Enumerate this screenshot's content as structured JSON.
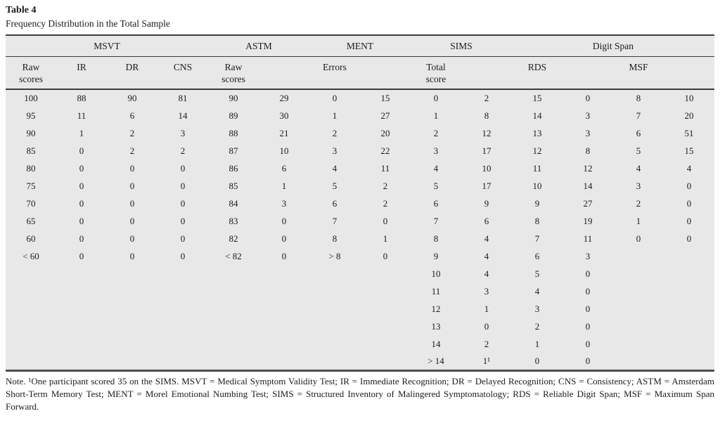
{
  "page": {
    "title": "Table 4",
    "subtitle": "Frequency Distribution in the Total Sample"
  },
  "table": {
    "column_groups": [
      {
        "label": "MSVT",
        "span": 4
      },
      {
        "label": "ASTM",
        "span": 2
      },
      {
        "label": "MENT",
        "span": 2
      },
      {
        "label": "SIMS",
        "span": 2
      },
      {
        "label": "Digit Span",
        "span": 4
      }
    ],
    "sub_headers": [
      "Raw\nscores",
      "IR",
      "DR",
      "CNS",
      "Raw\nscores",
      "",
      "Errors",
      "",
      "Total\nscore",
      "",
      "RDS",
      "",
      "MSF",
      ""
    ],
    "rows": [
      [
        "100",
        "88",
        "90",
        "81",
        "90",
        "29",
        "0",
        "15",
        "0",
        "2",
        "15",
        "0",
        "8",
        "10"
      ],
      [
        "95",
        "11",
        "6",
        "14",
        "89",
        "30",
        "1",
        "27",
        "1",
        "8",
        "14",
        "3",
        "7",
        "20"
      ],
      [
        "90",
        "1",
        "2",
        "3",
        "88",
        "21",
        "2",
        "20",
        "2",
        "12",
        "13",
        "3",
        "6",
        "51"
      ],
      [
        "85",
        "0",
        "2",
        "2",
        "87",
        "10",
        "3",
        "22",
        "3",
        "17",
        "12",
        "8",
        "5",
        "15"
      ],
      [
        "80",
        "0",
        "0",
        "0",
        "86",
        "6",
        "4",
        "11",
        "4",
        "10",
        "11",
        "12",
        "4",
        "4"
      ],
      [
        "75",
        "0",
        "0",
        "0",
        "85",
        "1",
        "5",
        "2",
        "5",
        "17",
        "10",
        "14",
        "3",
        "0"
      ],
      [
        "70",
        "0",
        "0",
        "0",
        "84",
        "3",
        "6",
        "2",
        "6",
        "9",
        "9",
        "27",
        "2",
        "0"
      ],
      [
        "65",
        "0",
        "0",
        "0",
        "83",
        "0",
        "7",
        "0",
        "7",
        "6",
        "8",
        "19",
        "1",
        "0"
      ],
      [
        "60",
        "0",
        "0",
        "0",
        "82",
        "0",
        "8",
        "1",
        "8",
        "4",
        "7",
        "11",
        "0",
        "0"
      ],
      [
        "< 60",
        "0",
        "0",
        "0",
        "< 82",
        "0",
        "> 8",
        "0",
        "9",
        "4",
        "6",
        "3",
        "",
        ""
      ],
      [
        "",
        "",
        "",
        "",
        "",
        "",
        "",
        "",
        "10",
        "4",
        "5",
        "0",
        "",
        ""
      ],
      [
        "",
        "",
        "",
        "",
        "",
        "",
        "",
        "",
        "11",
        "3",
        "4",
        "0",
        "",
        ""
      ],
      [
        "",
        "",
        "",
        "",
        "",
        "",
        "",
        "",
        "12",
        "1",
        "3",
        "0",
        "",
        ""
      ],
      [
        "",
        "",
        "",
        "",
        "",
        "",
        "",
        "",
        "13",
        "0",
        "2",
        "0",
        "",
        ""
      ],
      [
        "",
        "",
        "",
        "",
        "",
        "",
        "",
        "",
        "14",
        "2",
        "1",
        "0",
        "",
        ""
      ],
      [
        "",
        "",
        "",
        "",
        "",
        "",
        "",
        "",
        "> 14",
        "1¹",
        "0",
        "0",
        "",
        ""
      ]
    ]
  },
  "note": "Note. ¹One participant scored 35 on the SIMS. MSVT = Medical Symptom Validity Test; IR = Immediate Recognition; DR = Delayed Recognition; CNS = Consistency; ASTM = Amsterdam Short-Term Memory Test; MENT = Morel Emotional Numbing Test; SIMS = Structured Inventory of Malingered Symptomatology; RDS = Reliable Digit Span; MSF = Maximum Span Forward.",
  "colors": {
    "table_background": "#e8e8e8",
    "rule_dark": "#3c3c3c",
    "text": "#1b1b1b"
  }
}
